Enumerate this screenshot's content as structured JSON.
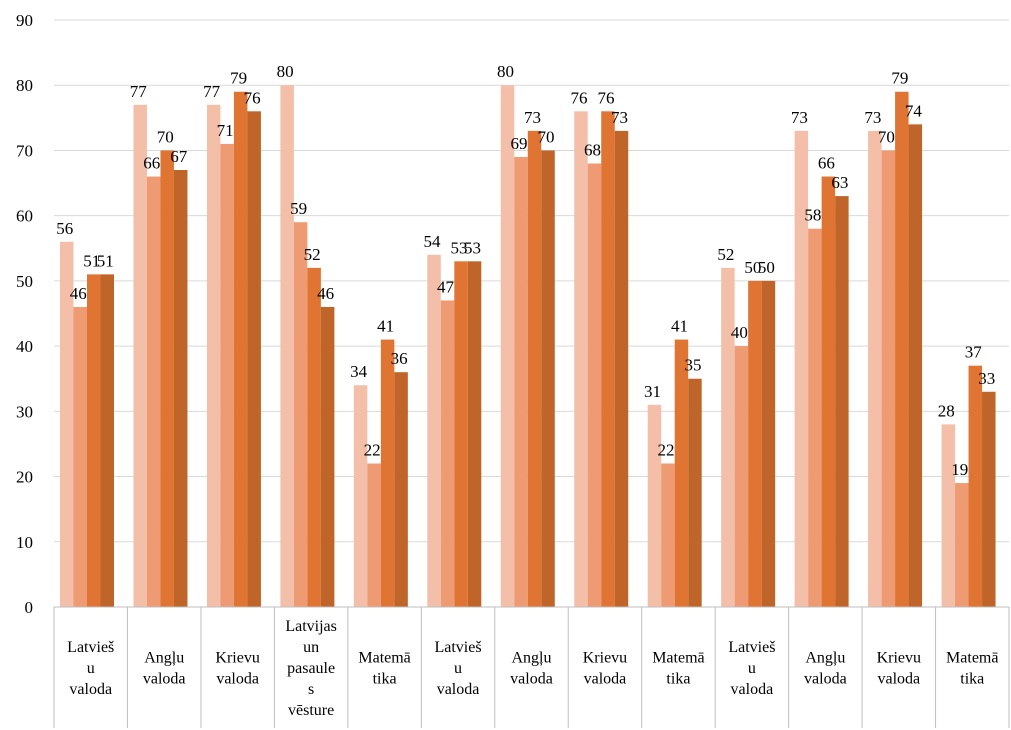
{
  "chart_data": {
    "type": "bar",
    "title": "",
    "xlabel": "",
    "ylabel": "",
    "ylim": [
      0,
      90
    ],
    "yticks": [
      0,
      10,
      20,
      30,
      40,
      50,
      60,
      70,
      80,
      90
    ],
    "grid": true,
    "legend": "none",
    "colors": [
      "#f4bfa9",
      "#ee9a72",
      "#e07432",
      "#c0652a"
    ],
    "categories": [
      "Latvieš u valoda",
      "Angļu valoda",
      "Krievu valoda",
      "Latvijas un pasaule s vēsture",
      "Matemā tika",
      "Latvieš u valoda",
      "Angļu valoda",
      "Krievu valoda",
      "Matemā tika",
      "Latvieš u valoda",
      "Angļu valoda",
      "Krievu valoda",
      "Matemā tika"
    ],
    "category_lines": [
      [
        "Latvieš",
        "u",
        "valoda"
      ],
      [
        "Angļu",
        "valoda"
      ],
      [
        "Krievu",
        "valoda"
      ],
      [
        "Latvijas",
        "un",
        "pasaule",
        "s",
        "vēsture"
      ],
      [
        "Matemā",
        "tika"
      ],
      [
        "Latvieš",
        "u",
        "valoda"
      ],
      [
        "Angļu",
        "valoda"
      ],
      [
        "Krievu",
        "valoda"
      ],
      [
        "Matemā",
        "tika"
      ],
      [
        "Latvieš",
        "u",
        "valoda"
      ],
      [
        "Angļu",
        "valoda"
      ],
      [
        "Krievu",
        "valoda"
      ],
      [
        "Matemā",
        "tika"
      ]
    ],
    "series": [
      {
        "values": [
          56,
          77,
          77,
          80,
          34,
          54,
          80,
          76,
          31,
          52,
          73,
          73,
          28
        ]
      },
      {
        "values": [
          46,
          66,
          71,
          59,
          22,
          47,
          69,
          68,
          22,
          40,
          58,
          70,
          19
        ]
      },
      {
        "values": [
          51,
          70,
          79,
          52,
          41,
          53,
          73,
          76,
          41,
          50,
          66,
          79,
          37
        ]
      },
      {
        "values": [
          51,
          67,
          76,
          46,
          36,
          53,
          70,
          73,
          35,
          50,
          63,
          74,
          33
        ]
      }
    ]
  }
}
